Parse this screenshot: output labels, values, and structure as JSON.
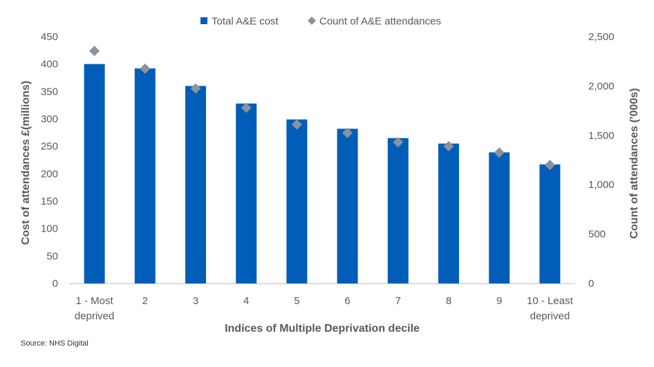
{
  "chart_data": {
    "type": "bar",
    "categories": [
      [
        "1 - Most",
        "deprived"
      ],
      [
        "2"
      ],
      [
        "3"
      ],
      [
        "4"
      ],
      [
        "5"
      ],
      [
        "6"
      ],
      [
        "7"
      ],
      [
        "8"
      ],
      [
        "9"
      ],
      [
        "10 - Least",
        "deprived"
      ]
    ],
    "series": [
      {
        "name": "Total A&E cost",
        "kind": "bar",
        "axis": "left",
        "color": "#005EB8",
        "marker": "square",
        "values": [
          400,
          392,
          360,
          328,
          299,
          282,
          265,
          255,
          239,
          217
        ]
      },
      {
        "name": "Count of A&E attendances",
        "kind": "marker",
        "axis": "right",
        "color": "#8C929B",
        "marker": "diamond",
        "values": [
          2355,
          2175,
          1975,
          1780,
          1610,
          1525,
          1430,
          1390,
          1325,
          1200
        ]
      }
    ],
    "xlabel": "Indices of Multiple Deprivation decile",
    "ylabel_left": "Cost of attendances £(millions)",
    "ylabel_right": "Count of attendances ('000s)",
    "ylim_left": [
      0,
      450
    ],
    "yticks_left": [
      "0",
      "50",
      "100",
      "150",
      "200",
      "250",
      "300",
      "350",
      "400",
      "450"
    ],
    "ylim_right": [
      0,
      2500
    ],
    "yticks_right": [
      "0",
      "500",
      "1,000",
      "1,500",
      "2,000",
      "2,500"
    ],
    "grid": false,
    "legend_position": "top"
  },
  "source": "Source: NHS Digital"
}
